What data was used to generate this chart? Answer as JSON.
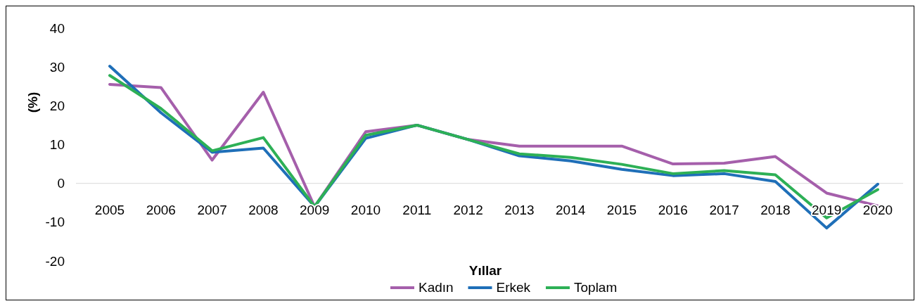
{
  "chart_data": {
    "type": "line",
    "xlabel": "Yıllar",
    "ylabel": "(%)",
    "categories": [
      "2005",
      "2006",
      "2007",
      "2008",
      "2009",
      "2010",
      "2011",
      "2012",
      "2013",
      "2014",
      "2015",
      "2016",
      "2017",
      "2018",
      "2019",
      "2020"
    ],
    "series": [
      {
        "name": "Kadın",
        "color": "#a55fab",
        "values": [
          25.5,
          24.7,
          6,
          23.5,
          -6,
          13.3,
          15,
          11.3,
          9.6,
          9.6,
          9.6,
          5,
          5.2,
          6.9,
          -2.5,
          -5.8
        ]
      },
      {
        "name": "Erkek",
        "color": "#1f6fb8",
        "values": [
          30.2,
          18.2,
          8,
          9.1,
          -6,
          11.6,
          15,
          11.3,
          7.1,
          5.8,
          3.6,
          2,
          2.5,
          0.5,
          -11.5,
          -0.2
        ]
      },
      {
        "name": "Toplam",
        "color": "#2db056",
        "values": [
          27.8,
          19.3,
          8.4,
          11.8,
          -6,
          12.4,
          15,
          11.3,
          7.6,
          6.7,
          4.9,
          2.5,
          3.3,
          2.2,
          -8.9,
          -1.6
        ]
      }
    ],
    "ylim": [
      -20,
      40
    ],
    "yticks": [
      -20,
      -10,
      0,
      10,
      20,
      30,
      40
    ],
    "grid": false,
    "legend": "bottom",
    "marker": "none",
    "line_style": "solid"
  }
}
